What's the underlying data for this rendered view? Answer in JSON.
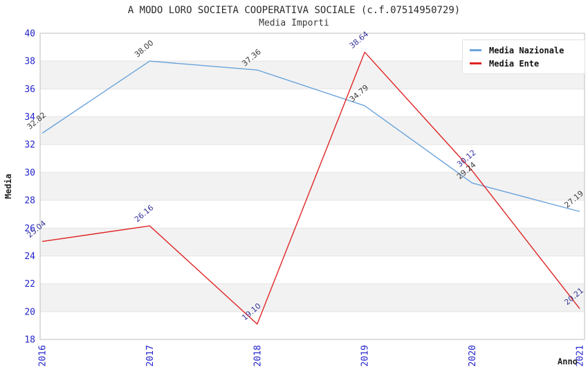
{
  "header": {
    "title": "A MODO LORO SOCIETA COOPERATIVA SOCIALE (c.f.07514950729)",
    "subtitle": "Media Importi"
  },
  "chart_data": {
    "type": "line",
    "categories": [
      "2016",
      "2017",
      "2018",
      "2019",
      "2020",
      "2021"
    ],
    "series": [
      {
        "name": "Media Nazionale",
        "color": "#6aa3db",
        "label_color": "#3a3a3a",
        "values": [
          32.82,
          38.0,
          37.36,
          34.79,
          29.24,
          27.19
        ]
      },
      {
        "name": "Media Ente",
        "color": "#e02424",
        "label_color": "#333399",
        "values": [
          25.04,
          26.16,
          19.1,
          38.64,
          30.12,
          20.21
        ]
      }
    ],
    "xlabel": "Anno",
    "ylabel": "Media",
    "ylim": [
      18,
      40
    ],
    "ytick_step": 2,
    "grid": true,
    "alternating_bands": true,
    "legend_position": "top-right",
    "colors": {
      "tick": "#2323cd",
      "grid": "#e4e4e4",
      "band": "#f2f2f2",
      "frame": "#bdbdbd"
    }
  }
}
